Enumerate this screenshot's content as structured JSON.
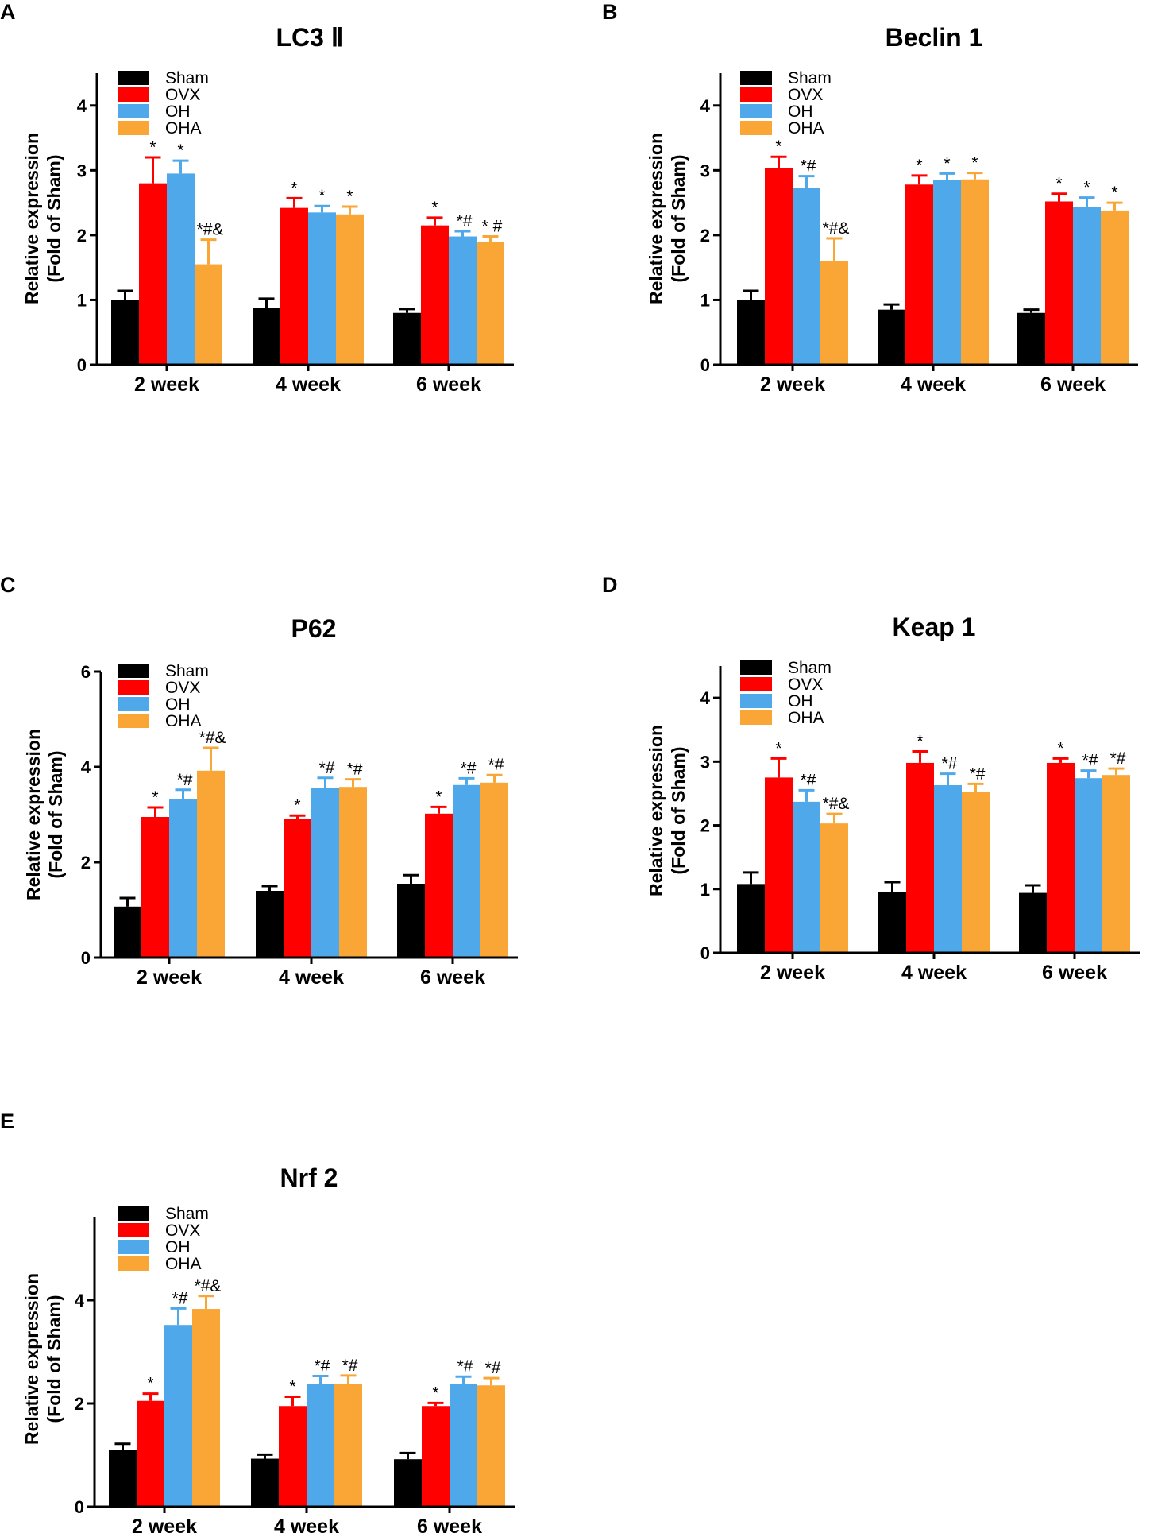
{
  "legend_entries": [
    {
      "label": "Sham",
      "color": "#000000"
    },
    {
      "label": "OVX",
      "color": "#ff0000"
    },
    {
      "label": "OH",
      "color": "#4fa8ea"
    },
    {
      "label": "OHA",
      "color": "#f9a637"
    }
  ],
  "chart_data": [
    {
      "panel": "A",
      "type": "bar",
      "title": "LC3 Ⅱ",
      "ylabel_line1": "Relative expression",
      "ylabel_line2": "(Fold of Sham)",
      "categories": [
        "2 week",
        "4 week",
        "6 week"
      ],
      "ylim": [
        0,
        4.5
      ],
      "yticks": [
        0,
        1,
        2,
        3,
        4
      ],
      "series": [
        {
          "name": "Sham",
          "values": [
            1.0,
            0.88,
            0.8
          ],
          "errors": [
            0.14,
            0.14,
            0.06
          ],
          "labels": [
            "",
            "",
            ""
          ]
        },
        {
          "name": "OVX",
          "values": [
            2.8,
            2.42,
            2.15
          ],
          "errors": [
            0.4,
            0.15,
            0.12
          ],
          "labels": [
            "*",
            "*",
            "*"
          ]
        },
        {
          "name": "OH",
          "values": [
            2.95,
            2.35,
            1.98
          ],
          "errors": [
            0.2,
            0.1,
            0.08
          ],
          "labels": [
            "*",
            "*",
            "*#"
          ]
        },
        {
          "name": "OHA",
          "values": [
            1.55,
            2.32,
            1.9
          ],
          "errors": [
            0.38,
            0.12,
            0.08
          ],
          "labels": [
            "*#&",
            "*",
            "* #"
          ]
        }
      ]
    },
    {
      "panel": "B",
      "type": "bar",
      "title": "Beclin 1",
      "ylabel_line1": "Relative expression",
      "ylabel_line2": "(Fold of Sham)",
      "categories": [
        "2 week",
        "4 week",
        "6 week"
      ],
      "ylim": [
        0,
        4.5
      ],
      "yticks": [
        0,
        1,
        2,
        3,
        4
      ],
      "series": [
        {
          "name": "Sham",
          "values": [
            1.0,
            0.85,
            0.8
          ],
          "errors": [
            0.14,
            0.08,
            0.05
          ],
          "labels": [
            "",
            "",
            ""
          ]
        },
        {
          "name": "OVX",
          "values": [
            3.03,
            2.78,
            2.52
          ],
          "errors": [
            0.18,
            0.14,
            0.12
          ],
          "labels": [
            "*",
            "*",
            "*"
          ]
        },
        {
          "name": "OH",
          "values": [
            2.73,
            2.85,
            2.43
          ],
          "errors": [
            0.18,
            0.1,
            0.15
          ],
          "labels": [
            "*#",
            "*",
            "*"
          ]
        },
        {
          "name": "OHA",
          "values": [
            1.6,
            2.86,
            2.38
          ],
          "errors": [
            0.35,
            0.1,
            0.12
          ],
          "labels": [
            "*#&",
            "*",
            "*"
          ]
        }
      ]
    },
    {
      "panel": "C",
      "type": "bar",
      "title": "P62",
      "ylabel_line1": "Relative expression",
      "ylabel_line2": "(Fold of Sham)",
      "categories": [
        "2 week",
        "4 week",
        "6 week"
      ],
      "ylim": [
        0,
        6
      ],
      "yticks": [
        0,
        2,
        4,
        6
      ],
      "series": [
        {
          "name": "Sham",
          "values": [
            1.07,
            1.4,
            1.55
          ],
          "errors": [
            0.18,
            0.1,
            0.18
          ],
          "labels": [
            "",
            "",
            ""
          ]
        },
        {
          "name": "OVX",
          "values": [
            2.95,
            2.9,
            3.02
          ],
          "errors": [
            0.2,
            0.08,
            0.14
          ],
          "labels": [
            "*",
            "*",
            "*"
          ]
        },
        {
          "name": "OH",
          "values": [
            3.32,
            3.55,
            3.62
          ],
          "errors": [
            0.2,
            0.22,
            0.14
          ],
          "labels": [
            "*#",
            "*#",
            "*#"
          ]
        },
        {
          "name": "OHA",
          "values": [
            3.92,
            3.58,
            3.67
          ],
          "errors": [
            0.48,
            0.16,
            0.16
          ],
          "labels": [
            "*#&",
            "*#",
            "*#"
          ]
        }
      ]
    },
    {
      "panel": "D",
      "type": "bar",
      "title": "Keap 1",
      "ylabel_line1": "Relative expression",
      "ylabel_line2": "(Fold of Sham)",
      "categories": [
        "2 week",
        "4 week",
        "6 week"
      ],
      "ylim": [
        0,
        4.5
      ],
      "yticks": [
        0,
        1,
        2,
        3,
        4
      ],
      "series": [
        {
          "name": "Sham",
          "values": [
            1.08,
            0.96,
            0.94
          ],
          "errors": [
            0.18,
            0.15,
            0.12
          ],
          "labels": [
            "",
            "",
            ""
          ]
        },
        {
          "name": "OVX",
          "values": [
            2.75,
            2.98,
            2.98
          ],
          "errors": [
            0.3,
            0.18,
            0.07
          ],
          "labels": [
            "*",
            "*",
            "*"
          ]
        },
        {
          "name": "OH",
          "values": [
            2.37,
            2.63,
            2.74
          ],
          "errors": [
            0.18,
            0.18,
            0.12
          ],
          "labels": [
            "*#",
            "*#",
            "*#"
          ]
        },
        {
          "name": "OHA",
          "values": [
            2.03,
            2.52,
            2.79
          ],
          "errors": [
            0.15,
            0.13,
            0.1
          ],
          "labels": [
            "*#&",
            "*#",
            "*#"
          ]
        }
      ]
    },
    {
      "panel": "E",
      "type": "bar",
      "title": "Nrf 2",
      "ylabel_line1": "Relative expression",
      "ylabel_line2": "(Fold of Sham)",
      "categories": [
        "2 week",
        "4 week",
        "6 week"
      ],
      "ylim": [
        0,
        5.6
      ],
      "yticks": [
        0,
        2,
        4
      ],
      "series": [
        {
          "name": "Sham",
          "values": [
            1.1,
            0.93,
            0.92
          ],
          "errors": [
            0.12,
            0.08,
            0.12
          ],
          "labels": [
            "",
            "",
            ""
          ]
        },
        {
          "name": "OVX",
          "values": [
            2.05,
            1.95,
            1.95
          ],
          "errors": [
            0.14,
            0.18,
            0.06
          ],
          "labels": [
            "*",
            "*",
            "*"
          ]
        },
        {
          "name": "OH",
          "values": [
            3.52,
            2.38,
            2.38
          ],
          "errors": [
            0.32,
            0.15,
            0.14
          ],
          "labels": [
            "*#",
            "*#",
            "*#"
          ]
        },
        {
          "name": "OHA",
          "values": [
            3.83,
            2.38,
            2.35
          ],
          "errors": [
            0.25,
            0.16,
            0.14
          ],
          "labels": [
            "*#&",
            "*#",
            "*#"
          ]
        }
      ]
    }
  ]
}
